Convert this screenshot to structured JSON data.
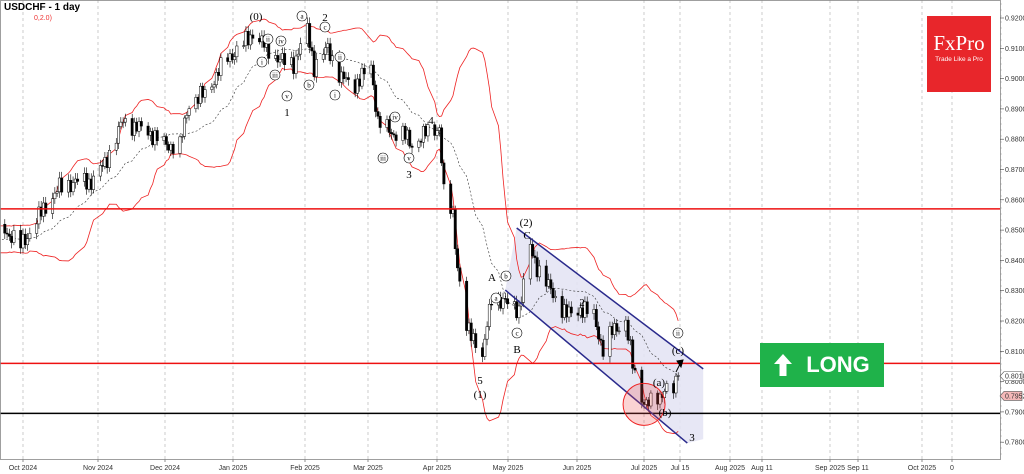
{
  "header": {
    "title": "USDCHF - 1 day",
    "indicator": "0,2.0)"
  },
  "logo": {
    "brand": "FxPro",
    "tagline": "Trade Like a Pro",
    "color": "#e8262b"
  },
  "signal": {
    "label": "LONG",
    "icon": "arrow-up-icon",
    "color": "#1fb24a"
  },
  "chart_data": {
    "type": "candlestick",
    "symbol": "USDCHF",
    "timeframe": "1 day",
    "ylim": [
      0.775,
      0.925
    ],
    "y_ticks": [
      "0.92000",
      "0.91000",
      "0.90000",
      "0.89000",
      "0.88000",
      "0.87000",
      "0.86000",
      "0.85000",
      "0.84000",
      "0.83000",
      "0.82000",
      "0.81000",
      "0.80000",
      "0.79000",
      "0.78000"
    ],
    "x_ticks": [
      "Oct 2024",
      "Nov 2024",
      "Dec 2024",
      "Jan 2025",
      "Feb 2025",
      "Mar 2025",
      "Apr 2025",
      "May 2025",
      "Jun 2025",
      "Jul 2025",
      "Jul 15",
      "Aug 2025",
      "Aug 11",
      "Sep 2025",
      "Sep 11",
      "Oct 2025",
      "0"
    ],
    "price_path": [
      [
        "2024-08-26",
        0.848
      ],
      [
        "2024-09-10",
        0.845
      ],
      [
        "2024-09-23",
        0.85
      ],
      [
        "2024-09-30",
        0.845
      ],
      [
        "2024-10-03",
        0.848
      ],
      [
        "2024-10-10",
        0.857
      ],
      [
        "2024-10-17",
        0.864
      ],
      [
        "2024-10-24",
        0.866
      ],
      [
        "2024-10-31",
        0.866
      ],
      [
        "2024-11-06",
        0.872
      ],
      [
        "2024-11-14",
        0.886
      ],
      [
        "2024-11-20",
        0.884
      ],
      [
        "2024-11-26",
        0.882
      ],
      [
        "2024-12-03",
        0.878
      ],
      [
        "2024-12-09",
        0.878
      ],
      [
        "2024-12-13",
        0.892
      ],
      [
        "2024-12-20",
        0.895
      ],
      [
        "2024-12-30",
        0.907
      ],
      [
        "2025-01-03",
        0.909
      ],
      [
        "2025-01-10",
        0.915
      ],
      [
        "2025-01-15",
        0.911
      ],
      [
        "2025-01-22",
        0.906
      ],
      [
        "2025-01-28",
        0.905
      ],
      [
        "2025-02-03",
        0.916
      ],
      [
        "2025-02-06",
        0.904
      ],
      [
        "2025-02-12",
        0.91
      ],
      [
        "2025-02-18",
        0.9
      ],
      [
        "2025-02-24",
        0.898
      ],
      [
        "2025-03-03",
        0.904
      ],
      [
        "2025-03-06",
        0.886
      ],
      [
        "2025-03-12",
        0.882
      ],
      [
        "2025-03-17",
        0.882
      ],
      [
        "2025-03-21",
        0.878
      ],
      [
        "2025-03-27",
        0.882
      ],
      [
        "2025-04-02",
        0.884
      ],
      [
        "2025-04-04",
        0.862
      ],
      [
        "2025-04-08",
        0.855
      ],
      [
        "2025-04-10",
        0.838
      ],
      [
        "2025-04-14",
        0.817
      ],
      [
        "2025-04-18",
        0.814
      ],
      [
        "2025-04-21",
        0.808
      ],
      [
        "2025-04-25",
        0.828
      ],
      [
        "2025-05-01",
        0.826
      ],
      [
        "2025-05-07",
        0.824
      ],
      [
        "2025-05-12",
        0.844
      ],
      [
        "2025-05-15",
        0.838
      ],
      [
        "2025-05-21",
        0.83
      ],
      [
        "2025-05-28",
        0.822
      ],
      [
        "2025-06-03",
        0.824
      ],
      [
        "2025-06-09",
        0.822
      ],
      [
        "2025-06-13",
        0.81
      ],
      [
        "2025-06-18",
        0.818
      ],
      [
        "2025-06-23",
        0.819
      ],
      [
        "2025-06-26",
        0.806
      ],
      [
        "2025-06-30",
        0.795
      ],
      [
        "2025-07-02",
        0.792
      ],
      [
        "2025-07-07",
        0.795
      ],
      [
        "2025-07-10",
        0.797
      ],
      [
        "2025-07-14",
        0.797
      ],
      [
        "2025-07-16",
        0.802
      ]
    ],
    "indicators": {
      "bollinger_bands": {
        "period": 20,
        "deviation": 2.0,
        "color": "#ee2222"
      }
    },
    "horizontal_levels": [
      {
        "price": 0.857,
        "color": "#ee1111"
      },
      {
        "price": 0.806,
        "color": "#ee1111"
      },
      {
        "price": 0.7895,
        "color": "#000000"
      }
    ],
    "channel": {
      "color": "#2a2a8c",
      "fill": "#e4e4f4",
      "upper": [
        [
          "2025-05-06",
          0.8507
        ],
        [
          "2025-07-27",
          0.8042
        ]
      ],
      "lower": [
        [
          "2025-05-01",
          0.8302
        ],
        [
          "2025-07-20",
          0.7797
        ]
      ]
    },
    "highlight_circle": {
      "date": "2025-07-01",
      "price": 0.7925,
      "color": "#ee2222"
    },
    "price_tags": [
      {
        "value": "0.80181",
        "price": 0.80181,
        "style": "current"
      },
      {
        "value": "0.79526",
        "price": 0.79526,
        "style": "bid",
        "color": "#f4b8b8"
      }
    ],
    "wave_labels": [
      "(0)",
      "a",
      "2",
      "c",
      "ii",
      "iv",
      "i",
      "iii",
      "v",
      "1",
      "b",
      "ii",
      "i",
      "iv",
      "4",
      "iii",
      "v",
      "3",
      "(2)",
      "C",
      "A",
      "b",
      "a",
      "c",
      "B",
      "2",
      "5",
      "(1)",
      "ii",
      "(c)",
      "(a)",
      "(b)",
      "3"
    ],
    "wave_label_circled": [
      false,
      true,
      false,
      true,
      true,
      true,
      true,
      true,
      true,
      false,
      true,
      true,
      true,
      true,
      false,
      true,
      true,
      false,
      false,
      false,
      false,
      true,
      true,
      true,
      false,
      false,
      false,
      false,
      true,
      false,
      false,
      false,
      false
    ]
  }
}
